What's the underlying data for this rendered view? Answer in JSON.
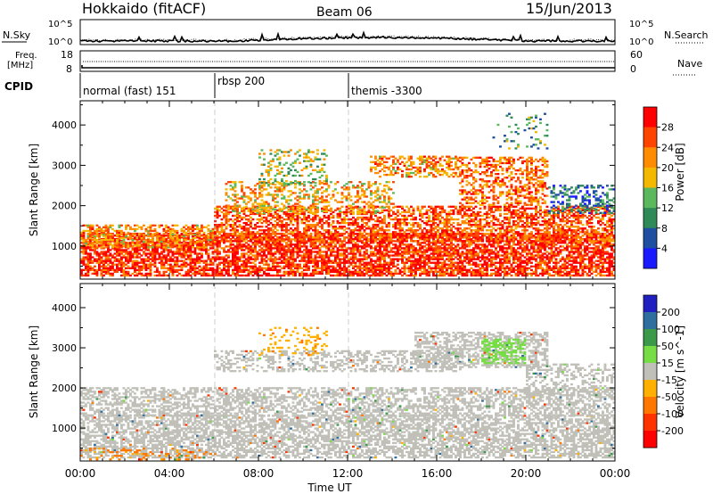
{
  "header": {
    "station": "Hokkaido (fitACF)",
    "beam": "Beam 06",
    "date": "15/Jun/2013"
  },
  "top_panels": {
    "nsky_label": "N.Sky",
    "nsky_ticks": [
      "10^5",
      "10^0"
    ],
    "nsearch_label": "N.Search",
    "nsearch_ticks": [
      "10^5",
      "10^0"
    ],
    "freq_label_1": "Freq.",
    "freq_label_2": "[MHz]",
    "freq_ticks": [
      "18",
      "8"
    ],
    "nave_label": "Nave",
    "nave_ticks": [
      "60",
      "0"
    ],
    "cpid_label": "CPID",
    "cpid_segments": [
      {
        "label": "normal (fast) 151",
        "start_h": 0,
        "end_h": 6
      },
      {
        "label": "rbsp 200",
        "start_h": 6,
        "end_h": 12
      },
      {
        "label": "themis -3300",
        "start_h": 12,
        "end_h": 24
      }
    ]
  },
  "chart_data": [
    {
      "type": "heatmap",
      "quantity": "Power",
      "xlabel": "Time UT",
      "ylabel": "Slant Range [km]",
      "x_range_h": [
        0,
        24
      ],
      "ylim": [
        180,
        4600
      ],
      "y_ticks": [
        "1000",
        "2000",
        "3000",
        "4000"
      ],
      "y_tick_values": [
        1000,
        2000,
        3000,
        4000
      ],
      "colorbar": {
        "label": "Power [dB]",
        "ticks": [
          "4",
          "8",
          "12",
          "16",
          "20",
          "24",
          "28"
        ],
        "colors": [
          "#1a1aff",
          "#1f4fa0",
          "#2e8b57",
          "#5cb85c",
          "#f5b800",
          "#ff8c00",
          "#ff4400",
          "#ff0000"
        ]
      },
      "bands": [
        {
          "t0": 0.0,
          "t1": 24.0,
          "r0": 250,
          "r1": 1300,
          "value": 28,
          "density": 0.7
        },
        {
          "t0": 0.0,
          "t1": 6.0,
          "r0": 950,
          "r1": 1500,
          "value": 22,
          "density": 0.5
        },
        {
          "t0": 6.0,
          "t1": 24.0,
          "r0": 1100,
          "r1": 2000,
          "value": 26,
          "density": 0.55
        },
        {
          "t0": 6.5,
          "t1": 14.0,
          "r0": 1800,
          "r1": 2600,
          "value": 20,
          "density": 0.35
        },
        {
          "t0": 13.0,
          "t1": 17.0,
          "r0": 2700,
          "r1": 3200,
          "value": 22,
          "density": 0.45
        },
        {
          "t0": 17.0,
          "t1": 21.0,
          "r0": 2000,
          "r1": 3200,
          "value": 24,
          "density": 0.45
        },
        {
          "t0": 21.0,
          "t1": 24.0,
          "r0": 1800,
          "r1": 2500,
          "value": 8,
          "density": 0.35
        },
        {
          "t0": 8.0,
          "t1": 11.0,
          "r0": 2500,
          "r1": 3400,
          "value": 16,
          "density": 0.25
        },
        {
          "t0": 18.5,
          "t1": 21.0,
          "r0": 3400,
          "r1": 4300,
          "value": 12,
          "density": 0.12
        }
      ]
    },
    {
      "type": "heatmap",
      "quantity": "Velocity",
      "xlabel": "Time UT",
      "ylabel": "Slant Range [km]",
      "x_range_h": [
        0,
        24
      ],
      "ylim": [
        180,
        4600
      ],
      "y_ticks": [
        "1000",
        "2000",
        "3000",
        "4000"
      ],
      "y_tick_values": [
        1000,
        2000,
        3000,
        4000
      ],
      "colorbar": {
        "label": "Velocity [m s^-1]",
        "ticks": [
          "200",
          "100",
          "50",
          "15",
          "-15",
          "-50",
          "-100",
          "-200"
        ],
        "colors": [
          "#2020c0",
          "#2f6f9f",
          "#3a9a4a",
          "#77dd44",
          "#c0c0b8",
          "#ffb000",
          "#ff7700",
          "#ff3300",
          "#ff0000"
        ]
      },
      "bands": [
        {
          "t0": 0.0,
          "t1": 24.0,
          "r0": 250,
          "r1": 1300,
          "value": 0,
          "density": 0.6
        },
        {
          "t0": 0.0,
          "t1": 24.0,
          "r0": 1300,
          "r1": 2000,
          "value": 0,
          "density": 0.5
        },
        {
          "t0": 6.0,
          "t1": 17.0,
          "r0": 2400,
          "r1": 2900,
          "value": 0,
          "density": 0.4
        },
        {
          "t0": 15.0,
          "t1": 21.0,
          "r0": 2500,
          "r1": 3400,
          "value": 0,
          "density": 0.5
        },
        {
          "t0": 18.0,
          "t1": 20.0,
          "r0": 2600,
          "r1": 3200,
          "value": 30,
          "density": 0.45
        },
        {
          "t0": 8.0,
          "t1": 11.0,
          "r0": 2800,
          "r1": 3500,
          "value": -40,
          "density": 0.2
        },
        {
          "t0": 0.0,
          "t1": 6.0,
          "r0": 200,
          "r1": 500,
          "value": -60,
          "density": 0.2
        },
        {
          "t0": 20.0,
          "t1": 24.0,
          "r0": 1800,
          "r1": 2600,
          "value": 0,
          "density": 0.35
        }
      ]
    }
  ],
  "x_ticks": [
    "00:00",
    "04:00",
    "08:00",
    "12:00",
    "16:00",
    "20:00",
    "00:00"
  ],
  "x_tick_hours": [
    0,
    4,
    8,
    12,
    16,
    20,
    24
  ],
  "x_axis_label": "Time UT"
}
